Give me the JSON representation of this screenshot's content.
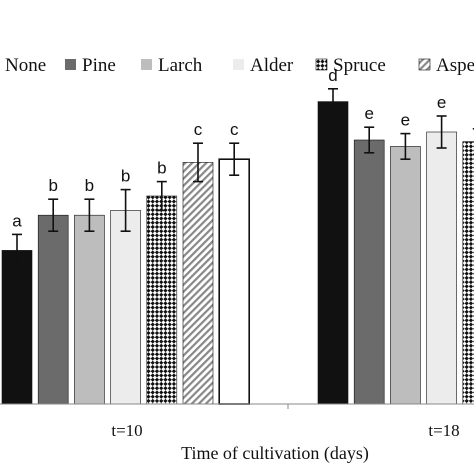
{
  "chart_data": {
    "type": "bar",
    "title": "",
    "xlabel": "Time of cultivation (days)",
    "ylabel": "",
    "ylim": [
      0,
      200
    ],
    "grid": false,
    "legend_position": "top",
    "categories": [
      "t=10",
      "t=18"
    ],
    "series": [
      {
        "name": "None",
        "fill": "#111111",
        "pattern": "solid",
        "values": [
          96,
          189
        ],
        "errors": [
          10,
          8
        ],
        "letters": [
          "a",
          "d"
        ]
      },
      {
        "name": "Pine",
        "fill": "#6b6b6b",
        "pattern": "solid",
        "values": [
          118,
          165
        ],
        "errors": [
          10,
          8
        ],
        "letters": [
          "b",
          "e"
        ]
      },
      {
        "name": "Larch",
        "fill": "#bdbdbd",
        "pattern": "solid",
        "values": [
          118,
          161
        ],
        "errors": [
          10,
          8
        ],
        "letters": [
          "b",
          "e"
        ]
      },
      {
        "name": "Alder",
        "fill": "#ececec",
        "pattern": "solid",
        "values": [
          121,
          170
        ],
        "errors": [
          13,
          10
        ],
        "letters": [
          "b",
          "e"
        ]
      },
      {
        "name": "Spruce",
        "fill": "#111111",
        "pattern": "checker",
        "values": [
          130,
          164
        ],
        "errors": [
          9,
          8
        ],
        "letters": [
          "b",
          ""
        ]
      },
      {
        "name": "Aspen",
        "fill": "#888888",
        "pattern": "diagonal",
        "values": [
          151,
          null
        ],
        "errors": [
          12,
          null
        ],
        "letters": [
          "c",
          ""
        ]
      },
      {
        "name": "",
        "fill": "#ffffff",
        "pattern": "outline",
        "values": [
          153,
          null
        ],
        "errors": [
          10,
          null
        ],
        "letters": [
          "c",
          ""
        ]
      }
    ]
  }
}
